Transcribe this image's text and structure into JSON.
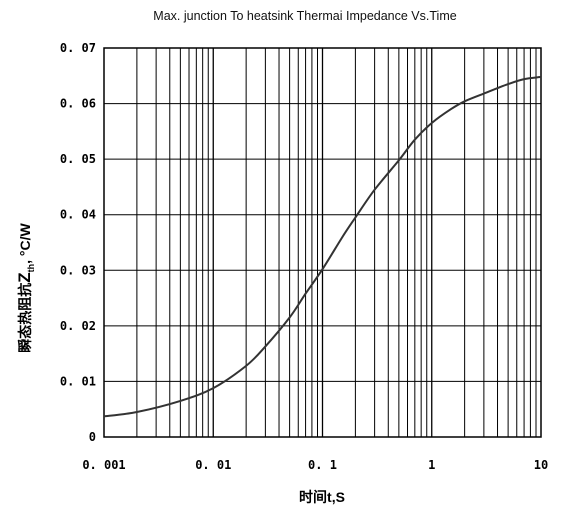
{
  "chart_data": {
    "type": "line",
    "title": "Max. junction To heatsink Thermai Impedance Vs.Time",
    "xlabel": "时间t,S",
    "ylabel_prefix": "瞬态热阻抗",
    "ylabel_symbol": "Z",
    "ylabel_subscript": "th",
    "ylabel_suffix": ", °C/W",
    "x_scale": "log",
    "xlim": [
      0.001,
      10
    ],
    "ylim": [
      0,
      0.07
    ],
    "x_tick_labels": [
      "0. 001",
      "0. 01",
      "0. 1",
      "1",
      "10"
    ],
    "x_tick_values": [
      0.001,
      0.01,
      0.1,
      1,
      10
    ],
    "y_tick_labels": [
      "0",
      "0. 01",
      "0. 02",
      "0. 03",
      "0. 04",
      "0. 05",
      "0. 06",
      "0. 07"
    ],
    "y_tick_values": [
      0,
      0.01,
      0.02,
      0.03,
      0.04,
      0.05,
      0.06,
      0.07
    ],
    "grid": true,
    "line_color": "#333333",
    "series": [
      {
        "x": [
          0.001,
          0.002,
          0.005,
          0.01,
          0.02,
          0.03,
          0.05,
          0.07,
          0.1,
          0.15,
          0.2,
          0.3,
          0.5,
          0.7,
          1,
          1.5,
          2,
          3,
          5,
          7,
          10
        ],
        "values": [
          0.0037,
          0.0045,
          0.0065,
          0.0088,
          0.0128,
          0.0163,
          0.0215,
          0.0258,
          0.0302,
          0.0358,
          0.0395,
          0.0445,
          0.0498,
          0.0535,
          0.0565,
          0.059,
          0.0604,
          0.0618,
          0.0635,
          0.0644,
          0.0648
        ]
      }
    ]
  }
}
